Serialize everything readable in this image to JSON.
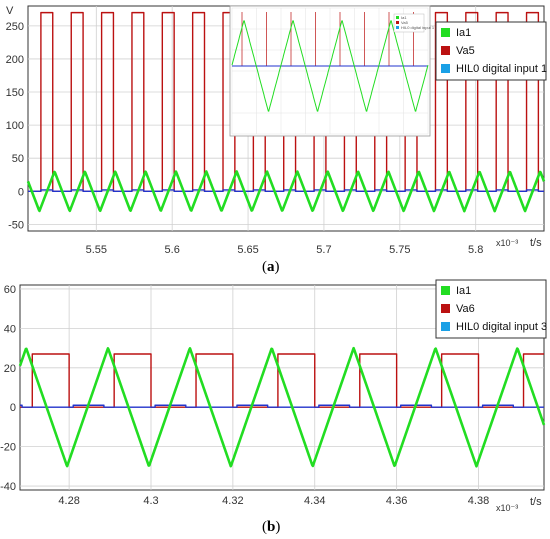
{
  "colors": {
    "ia1": "#22dd22",
    "va": "#bb1111",
    "digital": "#2233cc",
    "digital_legend": "#1aa0e6",
    "grid": "#d0d0d0",
    "axis": "#222222"
  },
  "chart_data": [
    {
      "id": "a",
      "type": "line",
      "caption": "a",
      "ylabel": "V",
      "xlabel": "t/s",
      "x_exponent": "x10⁻³",
      "xlim": [
        5.505,
        5.845
      ],
      "ylim": [
        -60,
        280
      ],
      "x_ticks": [
        5.55,
        5.6,
        5.65,
        5.7,
        5.75,
        5.8
      ],
      "x_tick_labels": [
        "5.55",
        "5.6",
        "5.65",
        "5.7",
        "5.75",
        "5.8"
      ],
      "y_ticks": [
        -50,
        0,
        50,
        100,
        150,
        200,
        250
      ],
      "y_tick_labels": [
        "-50",
        "0",
        "50",
        "100",
        "150",
        "200",
        "250"
      ],
      "grid": true,
      "legend_position": "top-right",
      "legend": [
        "Ia1",
        "Va5",
        "HIL0 digital input 1"
      ],
      "series": [
        {
          "name": "Ia1",
          "kind": "triangle",
          "period": 0.02,
          "phase": 5.5225,
          "amplitude": 30
        },
        {
          "name": "Va5",
          "kind": "pulse",
          "period": 0.02,
          "start": 5.5135,
          "width": 0.0078,
          "high": 270
        },
        {
          "name": "HIL0 digital input 1",
          "kind": "pulse",
          "period": 0.02,
          "start": 5.5135,
          "width": 0.0078,
          "high": 2
        }
      ],
      "inset": {
        "legend": [
          "Ia1",
          "Va5",
          "HIL0 digital input 1"
        ]
      }
    },
    {
      "id": "b",
      "type": "line",
      "caption": "b",
      "ylabel": "",
      "xlabel": "t/s",
      "x_exponent": "x10⁻³",
      "xlim": [
        4.268,
        4.396
      ],
      "ylim": [
        -42,
        62
      ],
      "x_ticks": [
        4.28,
        4.3,
        4.32,
        4.34,
        4.36,
        4.38
      ],
      "x_tick_labels": [
        "4.28",
        "4.3",
        "4.32",
        "4.34",
        "4.36",
        "4.38"
      ],
      "y_ticks": [
        -40,
        -20,
        0,
        20,
        40,
        60
      ],
      "y_tick_labels": [
        "-40",
        "-20",
        "0",
        "20",
        "40",
        "60"
      ],
      "grid": true,
      "legend_position": "top-right",
      "legend": [
        "Ia1",
        "Va6",
        "HIL0 digital input 3"
      ],
      "series": [
        {
          "name": "Ia1",
          "kind": "triangle",
          "period": 0.02,
          "phase": 4.2895,
          "amplitude": 30
        },
        {
          "name": "Va6",
          "kind": "pulse",
          "period": 0.02,
          "start": 4.271,
          "width": 0.009,
          "high": 27
        },
        {
          "name": "HIL0 digital input 3",
          "kind": "pulse",
          "period": 0.02,
          "start": 4.281,
          "width": 0.0075,
          "high": 1
        }
      ]
    }
  ]
}
